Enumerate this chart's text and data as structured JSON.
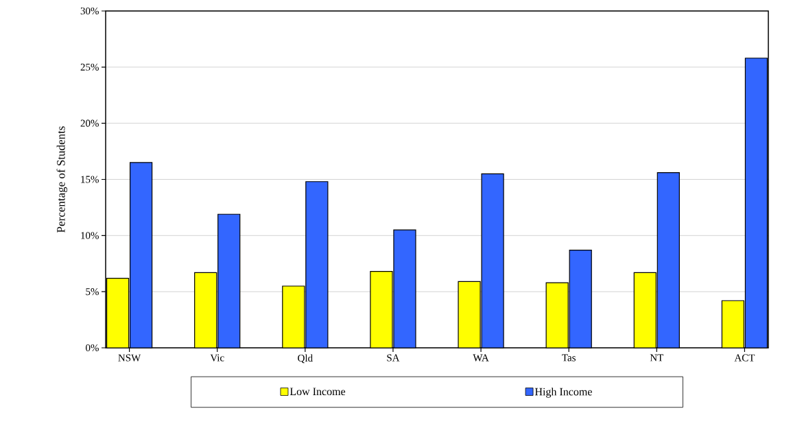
{
  "chart_data": {
    "type": "bar",
    "ylabel": "Percentage of Students",
    "categories": [
      "NSW",
      "Vic",
      "Qld",
      "SA",
      "WA",
      "Tas",
      "NT",
      "ACT"
    ],
    "series": [
      {
        "name": "Low Income",
        "color": "#ffff00",
        "values": [
          6.2,
          6.7,
          5.5,
          6.8,
          5.9,
          5.8,
          6.7,
          4.2
        ]
      },
      {
        "name": "High Income",
        "color": "#3366ff",
        "values": [
          16.5,
          11.9,
          14.8,
          10.5,
          15.5,
          8.7,
          15.6,
          25.8
        ]
      }
    ],
    "ylim": [
      0,
      30
    ],
    "yticks": [
      {
        "value": 0,
        "label": "0%"
      },
      {
        "value": 5,
        "label": "5%"
      },
      {
        "value": 10,
        "label": "10%"
      },
      {
        "value": 15,
        "label": "15%"
      },
      {
        "value": 20,
        "label": "20%"
      },
      {
        "value": 25,
        "label": "25%"
      },
      {
        "value": 30,
        "label": "30%"
      }
    ],
    "grid": "y",
    "legend": "bottom"
  }
}
